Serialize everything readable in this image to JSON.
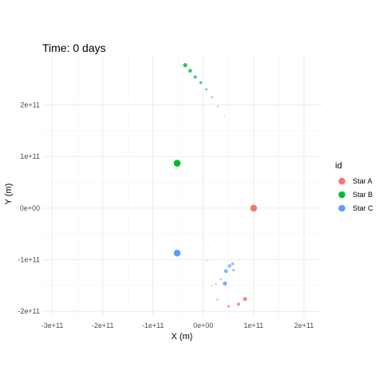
{
  "chart_data": {
    "type": "scatter",
    "title": "Time: 0 days",
    "xlabel": "X (m)",
    "ylabel": "Y (m)",
    "xlim": [
      -320000000000.0,
      235000000000.0
    ],
    "ylim": [
      -212000000000.0,
      295000000000.0
    ],
    "x_ticks": [
      {
        "value": -300000000000.0,
        "label": "-3e+11"
      },
      {
        "value": -200000000000.0,
        "label": "-2e+11"
      },
      {
        "value": -100000000000.0,
        "label": "-1e+11"
      },
      {
        "value": 0,
        "label": "0e+00"
      },
      {
        "value": 100000000000.0,
        "label": "1e+11"
      },
      {
        "value": 200000000000.0,
        "label": "2e+11"
      }
    ],
    "y_ticks": [
      {
        "value": -200000000000.0,
        "label": "-2e+11"
      },
      {
        "value": -100000000000.0,
        "label": "-1e+11"
      },
      {
        "value": 0,
        "label": "0e+00"
      },
      {
        "value": 100000000000.0,
        "label": "1e+11"
      },
      {
        "value": 200000000000.0,
        "label": "2e+11"
      }
    ],
    "grid": true,
    "legend": {
      "title": "id",
      "position": "right"
    },
    "series": [
      {
        "name": "Star A",
        "color": "#F8766D",
        "current": {
          "x": 100000000000.0,
          "y": 0
        },
        "trail": [
          {
            "x": 83000000000.0,
            "y": -176000000000.0,
            "age": 1
          },
          {
            "x": 70000000000.0,
            "y": -186000000000.0,
            "age": 2
          },
          {
            "x": 50000000000.0,
            "y": -190000000000.0,
            "age": 3
          },
          {
            "x": 28000000000.0,
            "y": -177000000000.0,
            "age": 4
          },
          {
            "x": 17000000000.0,
            "y": -150000000000.0,
            "age": 5
          }
        ]
      },
      {
        "name": "Star B",
        "color": "#00BA38",
        "current": {
          "x": -52000000000.0,
          "y": 87000000000.0
        },
        "trail": [
          {
            "x": -36000000000.0,
            "y": 277000000000.0,
            "age": 1
          },
          {
            "x": -26000000000.0,
            "y": 266000000000.0,
            "age": 2
          },
          {
            "x": -16000000000.0,
            "y": 254000000000.0,
            "age": 3
          },
          {
            "x": -5000000000.0,
            "y": 243000000000.0,
            "age": 4
          },
          {
            "x": 6000000000.0,
            "y": 230000000000.0,
            "age": 5
          },
          {
            "x": 17000000000.0,
            "y": 215000000000.0,
            "age": 6
          },
          {
            "x": 29000000000.0,
            "y": 197000000000.0,
            "age": 7
          },
          {
            "x": 42000000000.0,
            "y": 178000000000.0,
            "age": 8
          }
        ]
      },
      {
        "name": "Star C",
        "color": "#619CFF",
        "current": {
          "x": -52000000000.0,
          "y": -87000000000.0
        },
        "trail": [
          {
            "x": 43000000000.0,
            "y": -146000000000.0,
            "age": 1
          },
          {
            "x": 45000000000.0,
            "y": -122000000000.0,
            "age": 2
          },
          {
            "x": 52000000000.0,
            "y": -112000000000.0,
            "age": 3
          },
          {
            "x": 58000000000.0,
            "y": -108000000000.0,
            "age": 4
          },
          {
            "x": 60000000000.0,
            "y": -120000000000.0,
            "age": 5
          },
          {
            "x": 35000000000.0,
            "y": -138000000000.0,
            "age": 6
          },
          {
            "x": 25000000000.0,
            "y": -147000000000.0,
            "age": 7
          },
          {
            "x": 8000000000.0,
            "y": -102000000000.0,
            "age": 8
          },
          {
            "x": 10000000000.0,
            "y": -76000000000.0,
            "age": 9
          }
        ]
      }
    ]
  }
}
